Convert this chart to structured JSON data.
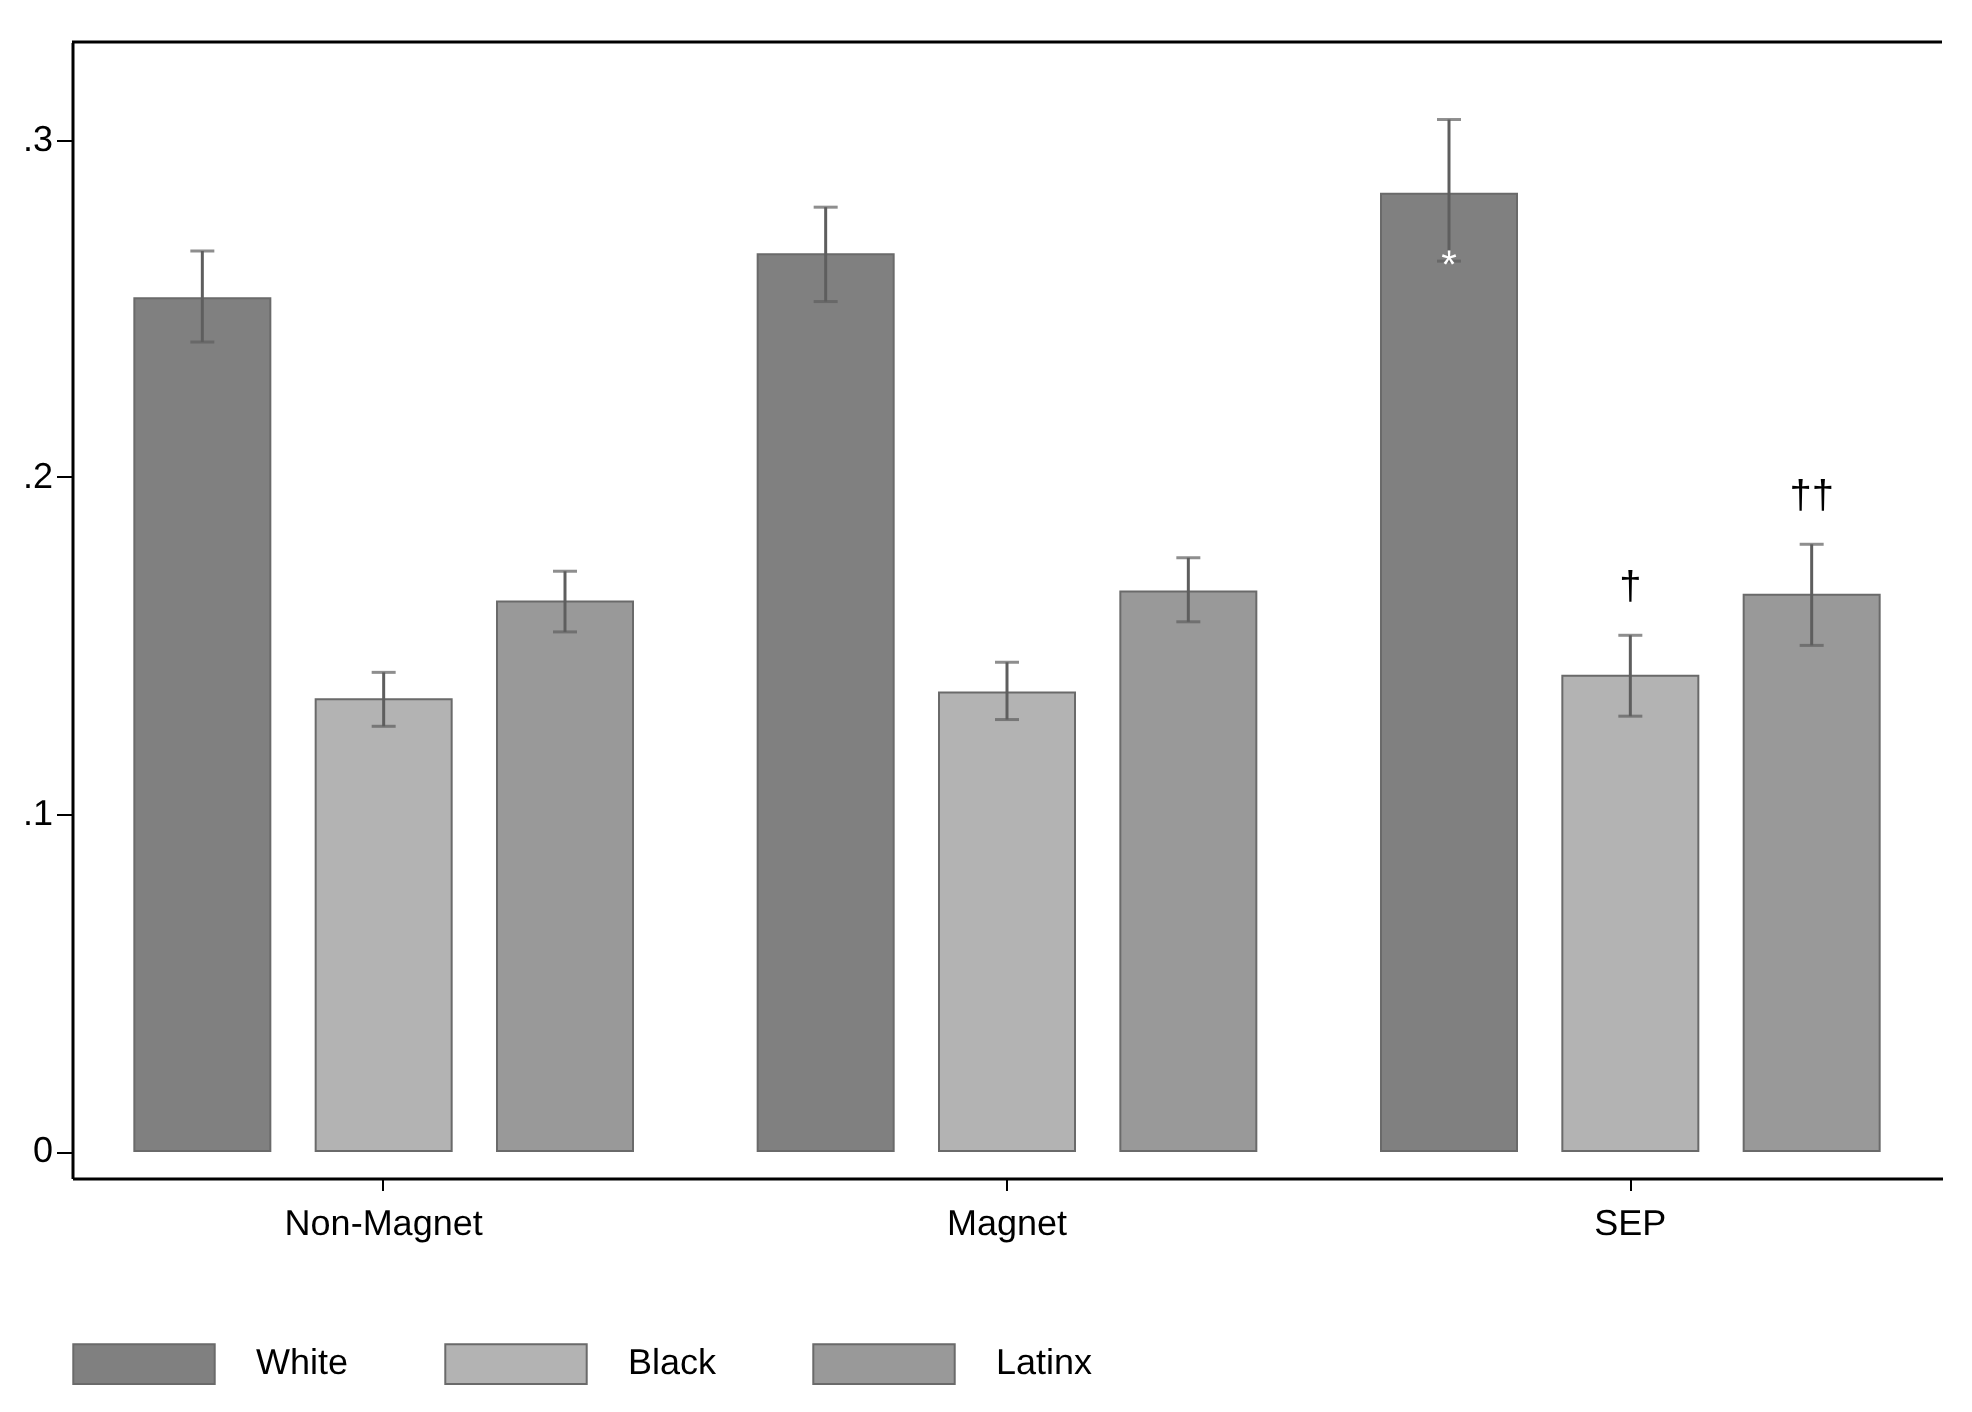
{
  "chart_data": {
    "type": "bar",
    "categories": [
      "Non-Magnet",
      "Magnet",
      "SEP"
    ],
    "series": [
      {
        "name": "White",
        "color": "#808080",
        "values": [
          0.253,
          0.266,
          0.284
        ],
        "errors": [
          [
            0.24,
            0.267
          ],
          [
            0.252,
            0.28
          ],
          [
            0.264,
            0.306
          ]
        ]
      },
      {
        "name": "Black",
        "color": "#b3b3b3",
        "values": [
          0.134,
          0.136,
          0.141
        ],
        "errors": [
          [
            0.126,
            0.142
          ],
          [
            0.128,
            0.145
          ],
          [
            0.129,
            0.153
          ]
        ]
      },
      {
        "name": "Latinx",
        "color": "#999999",
        "values": [
          0.163,
          0.166,
          0.165
        ],
        "errors": [
          [
            0.154,
            0.172
          ],
          [
            0.157,
            0.176
          ],
          [
            0.15,
            0.18
          ]
        ]
      }
    ],
    "ylim": [
      -0.008,
      0.329
    ],
    "yticks": [
      {
        "value": 0,
        "label": "0"
      },
      {
        "value": 0.1,
        "label": ".1"
      },
      {
        "value": 0.2,
        "label": ".2"
      },
      {
        "value": 0.3,
        "label": ".3"
      }
    ],
    "annotations": [
      "*",
      "†",
      "††"
    ],
    "grid": false,
    "legend": "bottom"
  }
}
